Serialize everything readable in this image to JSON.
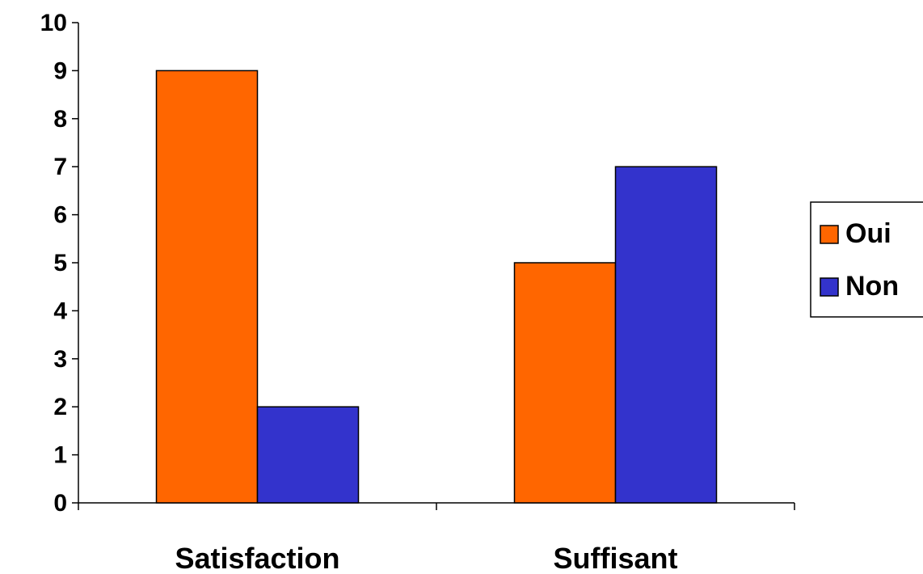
{
  "chart_data": {
    "type": "bar",
    "title": "",
    "xlabel": "",
    "ylabel": "",
    "categories": [
      "Satisfaction",
      "Suffisant"
    ],
    "series": [
      {
        "name": "Oui",
        "color": "#FF6600",
        "values": [
          9,
          5
        ]
      },
      {
        "name": "Non",
        "color": "#3333CC",
        "values": [
          2,
          7
        ]
      }
    ],
    "ylim": [
      0,
      10
    ],
    "yticks": [
      "0",
      "1",
      "2",
      "3",
      "4",
      "5",
      "6",
      "7",
      "8",
      "9",
      "10"
    ],
    "grid": false,
    "legend_position": "right"
  }
}
